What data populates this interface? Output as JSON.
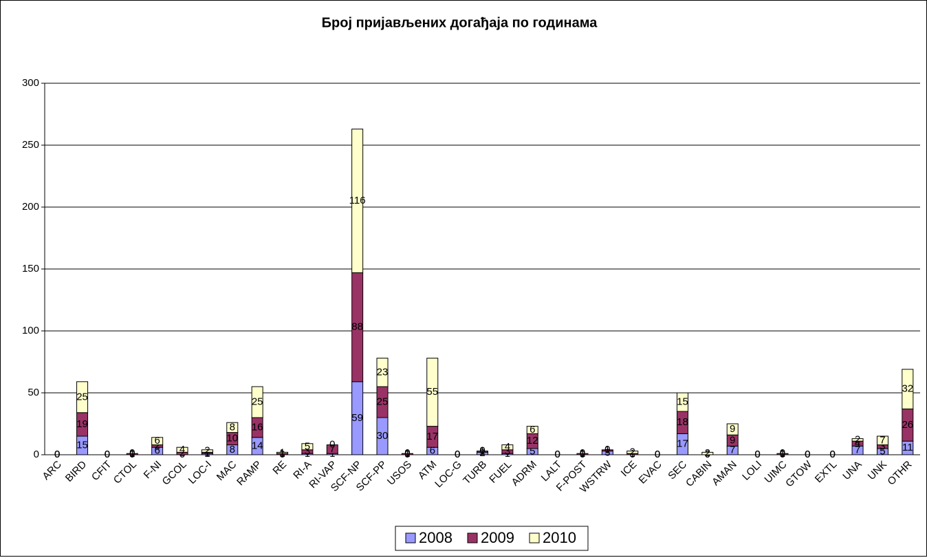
{
  "chart_data": {
    "type": "stacked_bar",
    "title": "Број пријављених догађаја по годинама",
    "categories": [
      "ARC",
      "BIRD",
      "CFIT",
      "CTOL",
      "F-NI",
      "GCOL",
      "LOC-I",
      "MAC",
      "RAMP",
      "RE",
      "RI-A",
      "RI-VAP",
      "SCF-NP",
      "SCF-PP",
      "USOS",
      "ATM",
      "LOC-G",
      "TURB",
      "FUEL",
      "ADRM",
      "LALT",
      "F-POST",
      "WSTRW",
      "ICE",
      "EVAC",
      "SEC",
      "CABIN",
      "AMAN",
      "LOLI",
      "UIMC",
      "GTOW",
      "EXTL",
      "UNA",
      "UNK",
      "OTHR"
    ],
    "series": [
      {
        "name": "2008",
        "color": "#9999ff",
        "values": [
          0,
          15,
          0,
          0,
          6,
          0,
          1,
          8,
          14,
          0,
          1,
          1,
          59,
          30,
          0,
          6,
          0,
          2,
          1,
          5,
          0,
          0,
          3,
          0,
          0,
          17,
          0,
          7,
          0,
          0,
          0,
          0,
          7,
          5,
          11
        ]
      },
      {
        "name": "2009",
        "color": "#993366",
        "values": [
          0,
          19,
          0,
          1,
          2,
          2,
          1,
          10,
          16,
          1,
          3,
          7,
          88,
          25,
          1,
          17,
          0,
          1,
          3,
          12,
          0,
          1,
          1,
          1,
          0,
          18,
          0,
          9,
          0,
          1,
          0,
          0,
          4,
          3,
          26
        ]
      },
      {
        "name": "2010",
        "color": "#ffffcc",
        "values": [
          0,
          25,
          0,
          0,
          6,
          4,
          2,
          8,
          25,
          1,
          5,
          0,
          116,
          23,
          0,
          55,
          0,
          0,
          4,
          6,
          0,
          0,
          0,
          2,
          0,
          15,
          2,
          9,
          0,
          0,
          0,
          0,
          2,
          7,
          32
        ]
      }
    ],
    "ylim": [
      0,
      300
    ],
    "yticks": [
      0,
      50,
      100,
      150,
      200,
      250,
      300
    ],
    "grid": true,
    "legend": "bottom"
  }
}
